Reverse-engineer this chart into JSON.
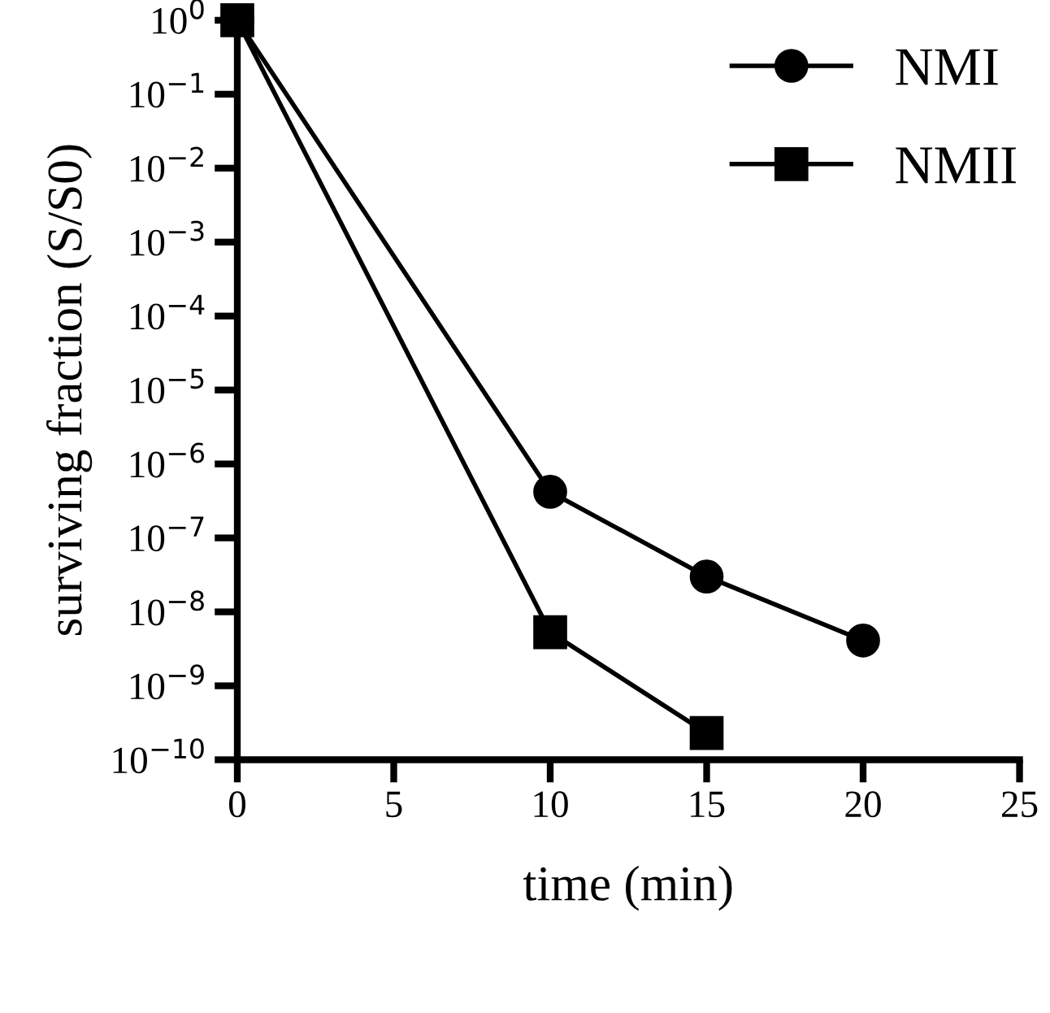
{
  "chart_data": {
    "type": "line",
    "xlabel": "time (min)",
    "ylabel": "surviving fraction (S/S0)",
    "log": "y",
    "xlim": [
      0,
      25
    ],
    "xticks": [
      0,
      5,
      10,
      15,
      20,
      25
    ],
    "ylim": [
      1e-10,
      1
    ],
    "yticks": [
      {
        "value": 1,
        "label": "10$^{0}$"
      },
      {
        "value": 0.1,
        "label": "10$^{−1}$"
      },
      {
        "value": 0.01,
        "label": "10$^{−2}$"
      },
      {
        "value": 0.001,
        "label": "10$^{−3}$"
      },
      {
        "value": 0.0001,
        "label": "10$^{−4}$"
      },
      {
        "value": 1e-05,
        "label": "10$^{−5}$"
      },
      {
        "value": 1e-06,
        "label": "10$^{−6}$"
      },
      {
        "value": 1e-07,
        "label": "10$^{−7}$"
      },
      {
        "value": 1e-08,
        "label": "10$^{−8}$"
      },
      {
        "value": 1e-09,
        "label": "10$^{−9}$"
      },
      {
        "value": 1e-10,
        "label": "10$^{−10}$"
      }
    ],
    "grid": false,
    "legend": "top right",
    "line_style": "solid",
    "series": [
      {
        "name": "NMI",
        "color": "#000000",
        "marker": "circle",
        "x": [
          0,
          10,
          15,
          20
        ],
        "values": [
          1,
          4.2e-07,
          3e-08,
          4.1e-09
        ]
      },
      {
        "name": "NMII",
        "color": "#000000",
        "marker": "square",
        "x": [
          0,
          10,
          15
        ],
        "values": [
          1,
          5.3e-09,
          2.3e-10
        ]
      }
    ]
  }
}
